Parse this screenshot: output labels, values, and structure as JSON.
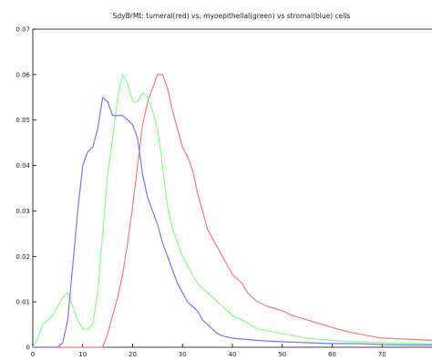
{
  "chart_data": {
    "type": "line",
    "title": "SdyBrMt: tumeral(red) vs. myoepithelial(green) vs stromal(blue)  cells",
    "xlabel": "",
    "ylabel": "",
    "xlim": [
      0,
      80
    ],
    "ylim": [
      0,
      0.07
    ],
    "xticks": [
      0,
      10,
      20,
      30,
      40,
      50,
      60,
      70
    ],
    "yticks": [
      0,
      0.01,
      0.02,
      0.03,
      0.04,
      0.05,
      0.06,
      0.07
    ],
    "xtick_labels": [
      "0",
      "10",
      "20",
      "30",
      "40",
      "50",
      "60",
      "70"
    ],
    "ytick_labels": [
      "0",
      "0.01",
      "0.02",
      "0.03",
      "0.04",
      "0.05",
      "0.06",
      "0.07"
    ],
    "grid": false,
    "legend": "none",
    "series": [
      {
        "color": "#ff7777",
        "x": [
          0,
          14,
          15,
          16,
          17,
          18,
          19,
          20,
          21,
          22,
          23,
          24,
          25,
          26,
          27,
          28,
          29,
          30,
          31,
          32,
          33,
          34,
          35,
          36,
          37,
          38,
          39,
          40,
          41,
          42,
          43,
          45,
          47,
          50,
          52,
          55,
          58,
          61,
          65,
          70,
          75,
          80
        ],
        "values": [
          0,
          0,
          0.003,
          0.007,
          0.011,
          0.016,
          0.023,
          0.031,
          0.04,
          0.049,
          0.054,
          0.057,
          0.06,
          0.06,
          0.057,
          0.052,
          0.048,
          0.044,
          0.042,
          0.039,
          0.034,
          0.03,
          0.026,
          0.024,
          0.022,
          0.02,
          0.018,
          0.016,
          0.015,
          0.014,
          0.012,
          0.01,
          0.009,
          0.008,
          0.007,
          0.006,
          0.005,
          0.004,
          0.003,
          0.002,
          0.0018,
          0.0015
        ]
      },
      {
        "color": "#88ff88",
        "x": [
          0,
          1,
          2,
          3,
          4,
          5,
          6,
          7,
          8,
          9,
          10,
          11,
          12,
          13,
          14,
          15,
          16,
          17,
          18,
          19,
          20,
          21,
          22,
          23,
          24,
          25,
          26,
          27,
          28,
          29,
          30,
          31,
          32,
          33,
          34,
          35,
          36,
          37,
          38,
          40,
          42,
          45,
          50,
          55,
          60,
          70,
          80
        ],
        "values": [
          0,
          0.002,
          0.005,
          0.006,
          0.007,
          0.009,
          0.011,
          0.012,
          0.009,
          0.006,
          0.004,
          0.004,
          0.005,
          0.012,
          0.025,
          0.038,
          0.046,
          0.055,
          0.06,
          0.058,
          0.054,
          0.054,
          0.056,
          0.055,
          0.052,
          0.048,
          0.04,
          0.031,
          0.026,
          0.023,
          0.02,
          0.018,
          0.016,
          0.014,
          0.013,
          0.012,
          0.011,
          0.01,
          0.009,
          0.007,
          0.006,
          0.004,
          0.003,
          0.002,
          0.0015,
          0.001,
          0.0008
        ]
      },
      {
        "color": "#7777ff",
        "x": [
          0,
          5,
          6,
          7,
          8,
          9,
          10,
          11,
          12,
          13,
          14,
          15,
          16,
          17,
          18,
          19,
          20,
          21,
          22,
          23,
          24,
          25,
          26,
          27,
          28,
          29,
          30,
          31,
          32,
          33,
          34,
          35,
          36,
          37,
          38,
          40,
          45,
          50,
          55,
          60,
          65,
          70,
          75,
          80
        ],
        "values": [
          0,
          0,
          0.001,
          0.006,
          0.018,
          0.03,
          0.04,
          0.043,
          0.044,
          0.048,
          0.055,
          0.054,
          0.051,
          0.051,
          0.051,
          0.05,
          0.049,
          0.046,
          0.038,
          0.033,
          0.03,
          0.027,
          0.023,
          0.02,
          0.017,
          0.014,
          0.012,
          0.01,
          0.009,
          0.008,
          0.006,
          0.005,
          0.004,
          0.003,
          0.0025,
          0.002,
          0.0015,
          0.0012,
          0.001,
          0.0008,
          0.0008,
          0.0006,
          0.0005,
          0.0005
        ]
      }
    ]
  }
}
